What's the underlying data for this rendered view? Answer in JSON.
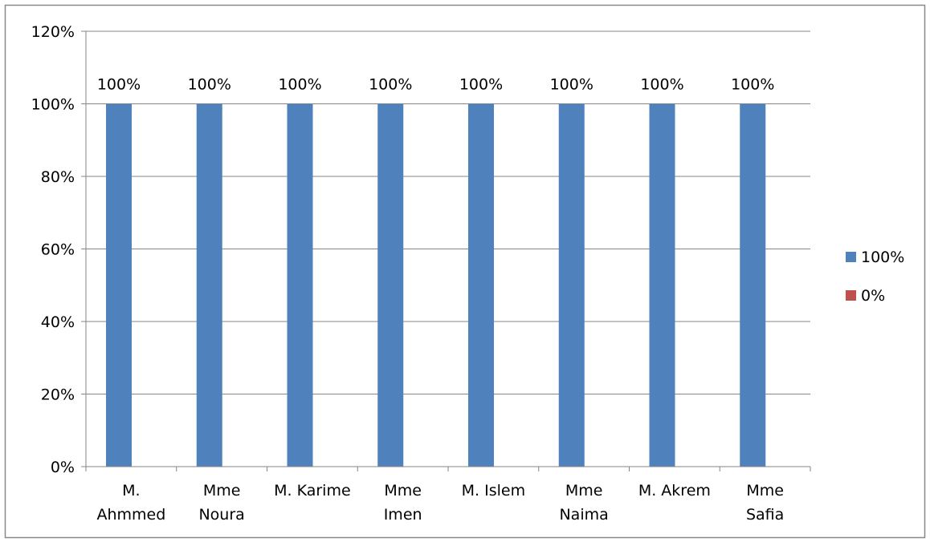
{
  "chart_data": {
    "type": "bar",
    "categories": [
      [
        "M.",
        "Ahmmed"
      ],
      [
        "Mme",
        "Noura"
      ],
      [
        "M. Karime"
      ],
      [
        "Mme",
        "Imen"
      ],
      [
        "M. Islem"
      ],
      [
        "Mme",
        "Naima"
      ],
      [
        "M. Akrem"
      ],
      [
        "Mme",
        "Safia"
      ]
    ],
    "series": [
      {
        "name": "100%",
        "values": [
          100,
          100,
          100,
          100,
          100,
          100,
          100,
          100
        ],
        "color": "#4F81BD"
      },
      {
        "name": "0%",
        "values": [
          0,
          0,
          0,
          0,
          0,
          0,
          0,
          0
        ],
        "color": "#C0504D"
      }
    ],
    "data_labels": [
      "100%",
      "100%",
      "100%",
      "100%",
      "100%",
      "100%",
      "100%",
      "100%"
    ],
    "y_ticks": [
      "0%",
      "20%",
      "40%",
      "60%",
      "80%",
      "100%",
      "120%"
    ],
    "ylim": [
      0,
      120
    ],
    "title": "",
    "xlabel": "",
    "ylabel": "",
    "grid": true,
    "legend_position": "right"
  }
}
